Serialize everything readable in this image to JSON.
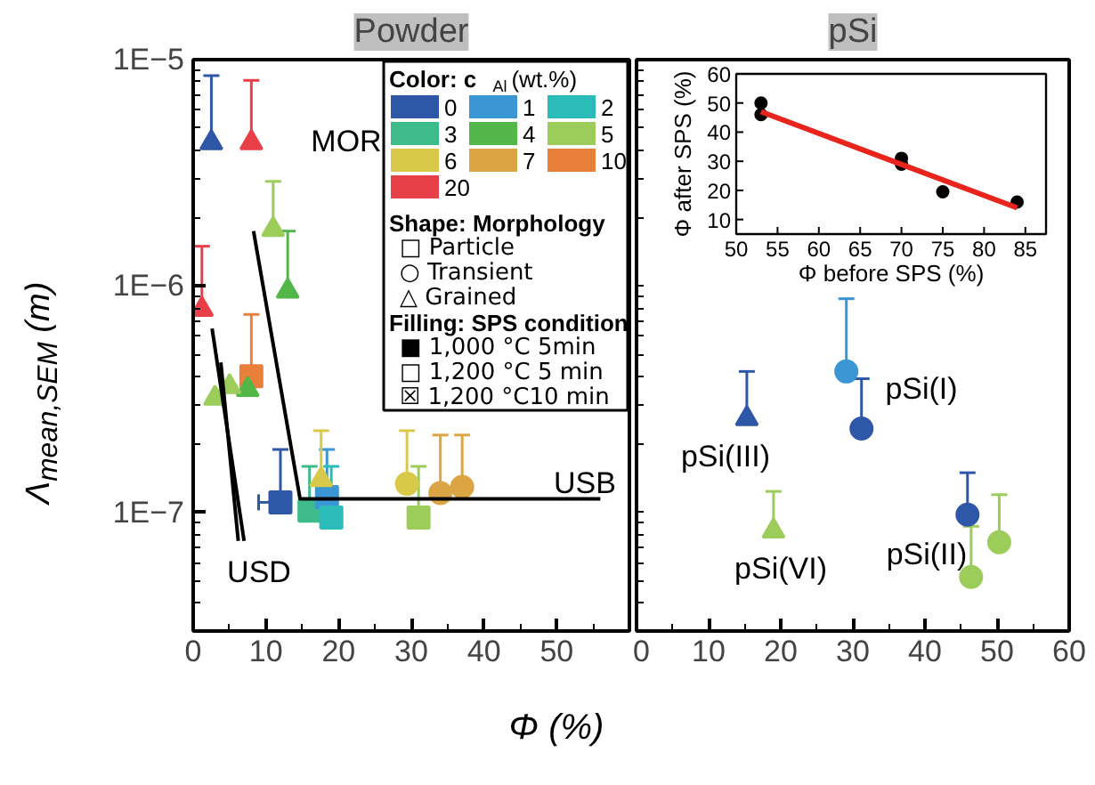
{
  "chart_data": [
    {
      "type": "scatter",
      "title": "Powder",
      "xlabel": "Φ (%)",
      "ylabel": "Λ$_{mean,SEM}$ (m)",
      "log": "y",
      "xlim": [
        0,
        60
      ],
      "ylim": [
        3e-08,
        1e-05
      ],
      "xticks": [
        0,
        {
          "value": 5,
          "label": null
        },
        10,
        {
          "value": 15,
          "label": null
        },
        20,
        {
          "value": 25,
          "label": null
        },
        30,
        {
          "value": 35,
          "label": null
        },
        40,
        {
          "value": 45,
          "label": null
        },
        50,
        {
          "value": 55,
          "label": null
        },
        {
          "value": 60,
          "label": null
        }
      ],
      "yticks": [
        {
          "value": 3e-08,
          "label": null
        },
        {
          "value": 4e-08,
          "label": null
        },
        {
          "value": 5e-08,
          "label": null
        },
        {
          "value": 6e-08,
          "label": null
        },
        {
          "value": 7e-08,
          "label": null
        },
        {
          "value": 8e-08,
          "label": null
        },
        {
          "value": 9e-08,
          "label": null
        },
        {
          "value": 1e-07,
          "label": "1E−7"
        },
        {
          "value": 2e-07,
          "label": null
        },
        {
          "value": 3e-07,
          "label": null
        },
        {
          "value": 4e-07,
          "label": null
        },
        {
          "value": 5e-07,
          "label": null
        },
        {
          "value": 6e-07,
          "label": null
        },
        {
          "value": 7e-07,
          "label": null
        },
        {
          "value": 8e-07,
          "label": null
        },
        {
          "value": 9e-07,
          "label": null
        },
        {
          "value": 1e-06,
          "label": "1E−6"
        },
        {
          "value": 2e-06,
          "label": null
        },
        {
          "value": 3e-06,
          "label": null
        },
        {
          "value": 4e-06,
          "label": null
        },
        {
          "value": 5e-06,
          "label": null
        },
        {
          "value": 6e-06,
          "label": null
        },
        {
          "value": 7e-06,
          "label": null
        },
        {
          "value": 8e-06,
          "label": null
        },
        {
          "value": 9e-06,
          "label": null
        },
        {
          "value": 1e-05,
          "label": "1E−5"
        }
      ],
      "series": [
        {
          "color": "#2f57a8",
          "marker": "triangle",
          "x": [
            2.5
          ],
          "values": [
            4.3e-06
          ],
          "errors": [
            [
              4.3e-06,
              8.5e-06
            ]
          ]
        },
        {
          "color": "#e84048",
          "marker": "triangle",
          "x": [
            8
          ],
          "values": [
            4.3e-06
          ],
          "errors": [
            [
              4.3e-06,
              8.1e-06
            ]
          ]
        },
        {
          "color": "#9ccc5a",
          "marker": "triangle",
          "x": [
            11
          ],
          "values": [
            1.78e-06
          ],
          "errors": [
            [
              1.78e-06,
              2.9e-06
            ]
          ]
        },
        {
          "color": "#52b748",
          "marker": "triangle",
          "x": [
            13
          ],
          "values": [
            9.5e-07
          ],
          "errors": [
            [
              9.5e-07,
              1.75e-06
            ]
          ]
        },
        {
          "color": "#e84048",
          "marker": "triangle",
          "x": [
            1.2
          ],
          "values": [
            7.9e-07
          ],
          "errors": [
            [
              7.9e-07,
              1.5e-06
            ]
          ]
        },
        {
          "color": "#e8803c",
          "marker": "square",
          "x": [
            8
          ],
          "values": [
            4e-07
          ],
          "errors": [
            [
              4e-07,
              7.5e-07
            ]
          ]
        },
        {
          "color": "#52b748",
          "marker": "triangle",
          "x": [
            7.5
          ],
          "values": [
            3.5e-07
          ]
        },
        {
          "color": "#9ccc5a",
          "marker": "triangle",
          "x": [
            3,
            5
          ],
          "values": [
            3.2e-07,
            3.6e-07
          ]
        },
        {
          "color": "#2f57a8",
          "marker": "square",
          "x": [
            12
          ],
          "values": [
            1.11e-07
          ],
          "errors": [
            [
              1.11e-07,
              1.9e-07
            ]
          ],
          "xerrors": [
            [
              9,
              12
            ]
          ]
        },
        {
          "color": "#3dbb8a",
          "marker": "square",
          "x": [
            16
          ],
          "values": [
            1.02e-07
          ],
          "errors": [
            [
              1.02e-07,
              1.6e-07
            ]
          ]
        },
        {
          "color": "#3a97d4",
          "marker": "square",
          "x": [
            18.4
          ],
          "values": [
            1.17e-07
          ],
          "errors": [
            [
              1.17e-07,
              1.9e-07
            ]
          ]
        },
        {
          "color": "#2bbbb8",
          "marker": "square",
          "x": [
            19
          ],
          "values": [
            9.5e-08
          ],
          "errors": [
            [
              9.5e-08,
              1.6e-07
            ]
          ]
        },
        {
          "color": "#d8c94a",
          "marker": "triangle",
          "x": [
            17.6
          ],
          "values": [
            1.4e-07
          ],
          "errors": [
            [
              1.4e-07,
              2.3e-07
            ]
          ]
        },
        {
          "color": "#d8c94a",
          "marker": "circle",
          "x": [
            29.4
          ],
          "values": [
            1.34e-07
          ],
          "errors": [
            [
              1.34e-07,
              2.3e-07
            ]
          ]
        },
        {
          "color": "#9ccc5a",
          "marker": "square",
          "x": [
            31
          ],
          "values": [
            9.5e-08
          ],
          "errors": [
            [
              9.5e-08,
              1.6e-07
            ]
          ]
        },
        {
          "color": "#dca544",
          "marker": "circle",
          "x": [
            34,
            37
          ],
          "values": [
            1.22e-07,
            1.3e-07
          ],
          "errors": [
            [
              1.22e-07,
              2.2e-07
            ],
            [
              1.3e-07,
              2.2e-07
            ]
          ]
        },
        {
          "type": "line",
          "color": "#000000",
          "x": [
            8.3,
            14.7,
            56
          ],
          "values": [
            1.75e-06,
            1.15e-07,
            1.15e-07
          ]
        },
        {
          "type": "line",
          "color": "#000000",
          "x": [
            7,
            2.6
          ],
          "values": [
            7.5e-08,
            6.5e-07
          ]
        },
        {
          "type": "line",
          "color": "#000000",
          "x": [
            6.2,
            3.8
          ],
          "values": [
            7.5e-08,
            4.6e-07
          ]
        }
      ],
      "annotations": [
        "MOR",
        "USB",
        "USD"
      ]
    },
    {
      "type": "other",
      "legend_title": "Color: c$_{Al}$ (wt.%)",
      "categories": [
        "0",
        "1",
        "2",
        "3",
        "4",
        "5",
        "6",
        "7",
        "10",
        "20"
      ],
      "colors": [
        "#2f57a8",
        "#3a97d4",
        "#2bbbb8",
        "#3dbb8a",
        "#52b748",
        "#9ccc5a",
        "#d8c94a",
        "#dca544",
        "#e8803c",
        "#e84048"
      ],
      "annotations": [
        "Shape: Morphology",
        "□ Particle",
        "○ Transient",
        "△ Grained",
        "Filling: SPS condition",
        "■ 1,000 °C 5min",
        "□ 1,200 °C 5 min",
        "☒ 1,200 °C10 min"
      ]
    },
    {
      "type": "scatter",
      "title": "pSi",
      "log": "y",
      "xlim": [
        0,
        60
      ],
      "ylim": [
        3e-08,
        1e-05
      ],
      "tick_labels": "x",
      "xticks": [
        0,
        {
          "value": 5,
          "label": null
        },
        10,
        {
          "value": 15,
          "label": null
        },
        20,
        {
          "value": 25,
          "label": null
        },
        30,
        {
          "value": 35,
          "label": null
        },
        40,
        {
          "value": 45,
          "label": null
        },
        50,
        {
          "value": 55,
          "label": null
        },
        60
      ],
      "yticks": [
        {
          "value": 3e-08,
          "label": null
        },
        {
          "value": 4e-08,
          "label": null
        },
        {
          "value": 5e-08,
          "label": null
        },
        {
          "value": 6e-08,
          "label": null
        },
        {
          "value": 7e-08,
          "label": null
        },
        {
          "value": 8e-08,
          "label": null
        },
        {
          "value": 9e-08,
          "label": null
        },
        {
          "value": 1e-07,
          "label": null
        },
        {
          "value": 2e-07,
          "label": null
        },
        {
          "value": 3e-07,
          "label": null
        },
        {
          "value": 4e-07,
          "label": null
        },
        {
          "value": 5e-07,
          "label": null
        },
        {
          "value": 6e-07,
          "label": null
        },
        {
          "value": 7e-07,
          "label": null
        },
        {
          "value": 8e-07,
          "label": null
        },
        {
          "value": 9e-07,
          "label": null
        },
        {
          "value": 1e-06,
          "label": null
        },
        {
          "value": 2e-06,
          "label": null
        },
        {
          "value": 3e-06,
          "label": null
        },
        {
          "value": 4e-06,
          "label": null
        },
        {
          "value": 5e-06,
          "label": null
        },
        {
          "value": 6e-06,
          "label": null
        },
        {
          "value": 7e-06,
          "label": null
        },
        {
          "value": 8e-06,
          "label": null
        },
        {
          "value": 9e-06,
          "label": null
        },
        {
          "value": 1e-05,
          "label": null
        }
      ],
      "series": [
        {
          "color": "#3a97d4",
          "marker": "circle",
          "x": [
            29.1
          ],
          "values": [
            4.2e-07
          ],
          "errors": [
            [
              4.2e-07,
              8.8e-07
            ]
          ]
        },
        {
          "color": "#2f57a8",
          "marker": "circle",
          "x": [
            31.2,
            45.9
          ],
          "values": [
            2.35e-07,
            9.8e-08
          ],
          "errors": [
            [
              2.35e-07,
              3.9e-07
            ],
            [
              9.8e-08,
              1.5e-07
            ]
          ]
        },
        {
          "color": "#2f57a8",
          "marker": "triangle",
          "x": [
            15.3
          ],
          "values": [
            2.6e-07
          ],
          "errors": [
            [
              2.6e-07,
              4.2e-07
            ]
          ]
        },
        {
          "color": "#9ccc5a",
          "marker": "triangle",
          "x": [
            19
          ],
          "values": [
            8.3e-08
          ],
          "errors": [
            [
              8.3e-08,
              1.24e-07
            ]
          ]
        },
        {
          "color": "#9ccc5a",
          "marker": "circle",
          "x": [
            46.4,
            50.3
          ],
          "values": [
            5.2e-08,
            7.4e-08
          ],
          "errors": [
            [
              5.2e-08,
              8.7e-08
            ],
            [
              7.4e-08,
              1.2e-07
            ]
          ]
        }
      ],
      "annotations": [
        "pSi(I)",
        "pSi(III)",
        "pSi(VI)",
        "pSi(II)"
      ]
    },
    {
      "type": "scatter",
      "xlabel": "Φ before SPS (%)",
      "ylabel": "Φ after SPS (%)",
      "xlim": [
        50,
        87.5
      ],
      "ylim": [
        5,
        60
      ],
      "xticks": [
        50,
        55,
        60,
        65,
        70,
        75,
        80,
        85
      ],
      "yticks": [
        10,
        20,
        30,
        40,
        50,
        60
      ],
      "series": [
        {
          "color": "#000000",
          "marker": "circle",
          "x": [
            53,
            53,
            70,
            70,
            75,
            84
          ],
          "values": [
            50,
            46,
            31,
            29,
            19.5,
            16
          ]
        },
        {
          "type": "line",
          "color": "#e8241c",
          "x": [
            53,
            84
          ],
          "values": [
            47,
            14
          ]
        }
      ]
    }
  ]
}
